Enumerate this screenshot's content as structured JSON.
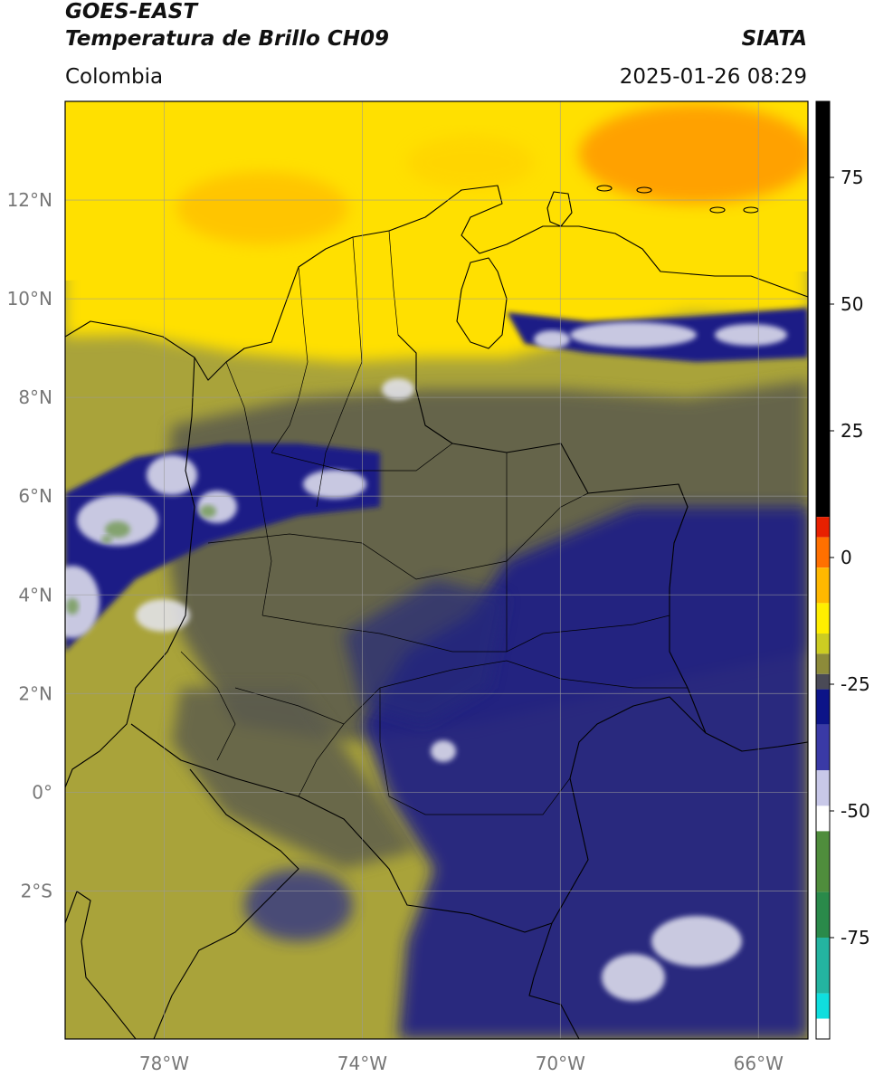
{
  "header": {
    "satellite": "GOES-EAST",
    "product": "Temperatura de Brillo CH09",
    "region": "Colombia",
    "organization": "SIATA",
    "timestamp": "2025-01-26 08:29"
  },
  "map": {
    "lon_range": [
      -80,
      -65
    ],
    "lat_range": [
      -5,
      14
    ],
    "lon_ticks": [
      {
        "value": -78,
        "label": "78°W"
      },
      {
        "value": -74,
        "label": "74°W"
      },
      {
        "value": -70,
        "label": "70°W"
      },
      {
        "value": -66,
        "label": "66°W"
      }
    ],
    "lat_ticks": [
      {
        "value": 12,
        "label": "12°N"
      },
      {
        "value": 10,
        "label": "10°N"
      },
      {
        "value": 8,
        "label": "8°N"
      },
      {
        "value": 6,
        "label": "6°N"
      },
      {
        "value": 4,
        "label": "4°N"
      },
      {
        "value": 2,
        "label": "2°N"
      },
      {
        "value": 0,
        "label": "0°"
      },
      {
        "value": -2,
        "label": "2°S"
      }
    ],
    "gridlines": true
  },
  "colorbar": {
    "range": [
      -95,
      90
    ],
    "ticks": [
      {
        "value": 75,
        "label": "75"
      },
      {
        "value": 50,
        "label": "50"
      },
      {
        "value": 25,
        "label": "25"
      },
      {
        "value": 0,
        "label": "0"
      },
      {
        "value": -25,
        "label": "-25"
      },
      {
        "value": -50,
        "label": "-50"
      },
      {
        "value": -75,
        "label": "-75"
      }
    ],
    "segments": [
      {
        "from": 8,
        "to": 90,
        "color": "#000000"
      },
      {
        "from": 4,
        "to": 8,
        "color": "#e82000"
      },
      {
        "from": -2,
        "to": 4,
        "color": "#ff7000"
      },
      {
        "from": -9,
        "to": -2,
        "color": "#ffb800"
      },
      {
        "from": -15,
        "to": -9,
        "color": "#ffee00"
      },
      {
        "from": -19,
        "to": -15,
        "color": "#cccc22"
      },
      {
        "from": -23,
        "to": -19,
        "color": "#8d8b3a"
      },
      {
        "from": -26,
        "to": -23,
        "color": "#4a4a56"
      },
      {
        "from": -33,
        "to": -26,
        "color": "#0c1488"
      },
      {
        "from": -42,
        "to": -33,
        "color": "#3a3aa6"
      },
      {
        "from": -49,
        "to": -42,
        "color": "#c8c8e8"
      },
      {
        "from": -54,
        "to": -49,
        "color": "#ffffff"
      },
      {
        "from": -66,
        "to": -54,
        "color": "#4f8d3c"
      },
      {
        "from": -75,
        "to": -66,
        "color": "#2a8a4a"
      },
      {
        "from": -86,
        "to": -75,
        "color": "#24b4a0"
      },
      {
        "from": -91,
        "to": -86,
        "color": "#10dede"
      },
      {
        "from": -95,
        "to": -91,
        "color": "#ffffff"
      }
    ]
  },
  "colors": {
    "warm_band": "#ffe000",
    "orange_patch": "#ff8c00",
    "olive": "#a9a33a",
    "gray_olive": "#5a5a4e",
    "cold_navy": "#1a1e86",
    "cloud_white": "#e6e6f2"
  }
}
